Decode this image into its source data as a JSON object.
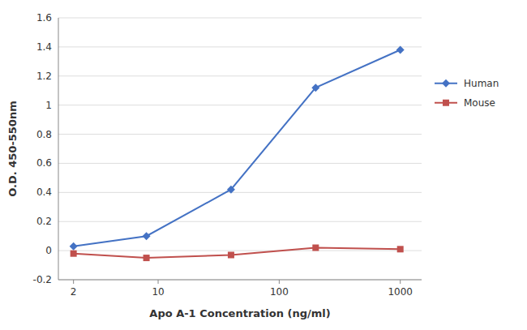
{
  "chart_data": {
    "type": "line",
    "x": [
      2,
      8,
      40,
      200,
      1000
    ],
    "series": [
      {
        "name": "Human",
        "color": "#4472C4",
        "marker": "diamond",
        "values": [
          0.03,
          0.1,
          0.42,
          1.12,
          1.38
        ]
      },
      {
        "name": "Mouse",
        "color": "#C0504D",
        "marker": "square",
        "values": [
          -0.02,
          -0.05,
          -0.03,
          0.02,
          0.01
        ]
      }
    ],
    "xlabel": "Apo A-1 Concentration (ng/ml)",
    "ylabel": "O.D. 450-550nm",
    "xlim": [
      1.5,
      1500
    ],
    "xticks": [
      2,
      10,
      100,
      1000
    ],
    "ylim": [
      -0.2,
      1.6
    ],
    "yticks": [
      -0.2,
      0,
      0.2,
      0.4,
      0.6,
      0.8,
      1.0,
      1.2,
      1.4,
      1.6
    ],
    "log": "x",
    "grid": true,
    "legend": "right"
  }
}
